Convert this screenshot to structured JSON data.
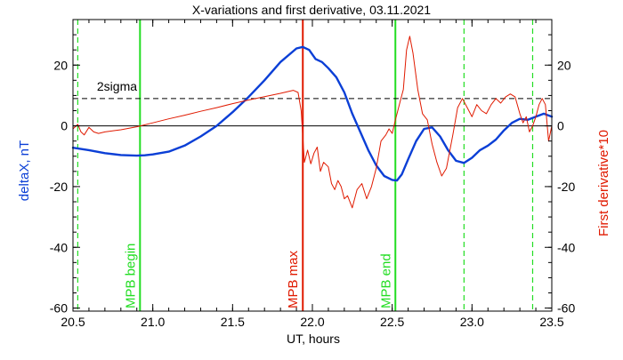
{
  "chart_data": {
    "type": "line",
    "title": "X-variations and first derivative, 03.11.2021",
    "xlabel": "UT, hours",
    "ylabel_left": "deltaX, nT",
    "ylabel_right": "First derivative*10",
    "xlim": [
      20.5,
      23.5
    ],
    "ylim": [
      -61,
      35
    ],
    "x_ticks": [
      "20.5",
      "21.0",
      "21.5",
      "22.0",
      "22.5",
      "23.0",
      "23.5"
    ],
    "y_ticks_left": [
      "-60",
      "-40",
      "-20",
      "0",
      "20"
    ],
    "y_ticks_right": [
      "-60",
      "-40",
      "-20",
      "0",
      "20"
    ],
    "grid": false,
    "colors": {
      "deltaX": "#0b3fd6",
      "derivative": "#e01a00",
      "marker_green": "#22dd22",
      "marker_red": "#e01a00",
      "reference": "#000000"
    },
    "series": [
      {
        "key": "deltaX",
        "axis": "left",
        "points": [
          [
            20.5,
            -7.2
          ],
          [
            20.6,
            -8.0
          ],
          [
            20.7,
            -9.0
          ],
          [
            20.8,
            -9.6
          ],
          [
            20.9,
            -9.8
          ],
          [
            20.95,
            -9.7
          ],
          [
            21.0,
            -9.4
          ],
          [
            21.1,
            -8.5
          ],
          [
            21.2,
            -6.5
          ],
          [
            21.3,
            -3.5
          ],
          [
            21.4,
            0.0
          ],
          [
            21.5,
            4.5
          ],
          [
            21.6,
            9.5
          ],
          [
            21.7,
            15.0
          ],
          [
            21.8,
            21.0
          ],
          [
            21.9,
            25.5
          ],
          [
            21.94,
            26.0
          ],
          [
            21.98,
            25.0
          ],
          [
            22.02,
            22.0
          ],
          [
            22.06,
            21.0
          ],
          [
            22.1,
            19.0
          ],
          [
            22.15,
            16.0
          ],
          [
            22.2,
            11.0
          ],
          [
            22.25,
            4.0
          ],
          [
            22.3,
            -2.0
          ],
          [
            22.35,
            -8.0
          ],
          [
            22.4,
            -13.0
          ],
          [
            22.45,
            -16.5
          ],
          [
            22.5,
            -17.8
          ],
          [
            22.53,
            -18.0
          ],
          [
            22.56,
            -16.0
          ],
          [
            22.6,
            -11.0
          ],
          [
            22.65,
            -5.0
          ],
          [
            22.7,
            -1.0
          ],
          [
            22.75,
            -0.5
          ],
          [
            22.8,
            -3.5
          ],
          [
            22.85,
            -8.0
          ],
          [
            22.9,
            -11.5
          ],
          [
            22.95,
            -12.2
          ],
          [
            23.0,
            -10.5
          ],
          [
            23.05,
            -8.0
          ],
          [
            23.1,
            -6.5
          ],
          [
            23.15,
            -4.5
          ],
          [
            23.2,
            -1.5
          ],
          [
            23.25,
            1.0
          ],
          [
            23.3,
            2.3
          ],
          [
            23.35,
            2.0
          ],
          [
            23.4,
            3.0
          ],
          [
            23.45,
            4.0
          ],
          [
            23.5,
            3.0
          ]
        ]
      },
      {
        "key": "derivative",
        "axis": "right",
        "points": [
          [
            20.5,
            -1.0
          ],
          [
            20.53,
            0.5
          ],
          [
            20.55,
            -2.0
          ],
          [
            20.57,
            -3.0
          ],
          [
            20.6,
            -0.5
          ],
          [
            20.63,
            -2.0
          ],
          [
            20.66,
            -2.5
          ],
          [
            20.7,
            -2.0
          ],
          [
            20.8,
            -1.3
          ],
          [
            20.9,
            -0.3
          ],
          [
            21.0,
            1.0
          ],
          [
            21.1,
            2.3
          ],
          [
            21.2,
            3.5
          ],
          [
            21.3,
            4.8
          ],
          [
            21.4,
            6.0
          ],
          [
            21.5,
            7.3
          ],
          [
            21.6,
            8.5
          ],
          [
            21.7,
            9.6
          ],
          [
            21.8,
            10.7
          ],
          [
            21.88,
            11.7
          ],
          [
            21.91,
            11.0
          ],
          [
            21.93,
            5.0
          ],
          [
            21.95,
            -12.0
          ],
          [
            21.97,
            -8.0
          ],
          [
            21.99,
            -12.5
          ],
          [
            22.01,
            -9.0
          ],
          [
            22.03,
            -7.0
          ],
          [
            22.05,
            -15.0
          ],
          [
            22.07,
            -12.0
          ],
          [
            22.1,
            -13.5
          ],
          [
            22.12,
            -19.0
          ],
          [
            22.14,
            -21.0
          ],
          [
            22.16,
            -18.0
          ],
          [
            22.18,
            -20.0
          ],
          [
            22.2,
            -24.0
          ],
          [
            22.22,
            -23.0
          ],
          [
            22.25,
            -27.0
          ],
          [
            22.28,
            -21.0
          ],
          [
            22.31,
            -19.0
          ],
          [
            22.34,
            -24.0
          ],
          [
            22.37,
            -20.0
          ],
          [
            22.4,
            -14.0
          ],
          [
            22.43,
            -5.0
          ],
          [
            22.46,
            -3.0
          ],
          [
            22.48,
            -1.0
          ],
          [
            22.5,
            -2.5
          ],
          [
            22.52,
            2.0
          ],
          [
            22.55,
            8.0
          ],
          [
            22.57,
            12.0
          ],
          [
            22.59,
            25.0
          ],
          [
            22.61,
            29.5
          ],
          [
            22.63,
            24.0
          ],
          [
            22.66,
            12.0
          ],
          [
            22.69,
            4.0
          ],
          [
            22.72,
            2.0
          ],
          [
            22.75,
            -6.0
          ],
          [
            22.78,
            -12.0
          ],
          [
            22.81,
            -16.5
          ],
          [
            22.84,
            -14.0
          ],
          [
            22.88,
            -3.0
          ],
          [
            22.91,
            6.0
          ],
          [
            22.94,
            9.0
          ],
          [
            22.97,
            6.0
          ],
          [
            23.0,
            3.0
          ],
          [
            23.03,
            7.0
          ],
          [
            23.06,
            5.0
          ],
          [
            23.09,
            4.0
          ],
          [
            23.12,
            7.0
          ],
          [
            23.15,
            9.0
          ],
          [
            23.18,
            7.5
          ],
          [
            23.21,
            9.5
          ],
          [
            23.24,
            10.5
          ],
          [
            23.27,
            9.5
          ],
          [
            23.3,
            4.0
          ],
          [
            23.32,
            1.0
          ],
          [
            23.34,
            3.0
          ],
          [
            23.36,
            -2.0
          ],
          [
            23.38,
            0.0
          ],
          [
            23.4,
            3.0
          ],
          [
            23.42,
            7.0
          ],
          [
            23.44,
            9.0
          ],
          [
            23.46,
            7.0
          ],
          [
            23.48,
            -5.0
          ],
          [
            23.5,
            0.0
          ]
        ]
      }
    ],
    "reference_lines": [
      {
        "key": "zero",
        "y": 0,
        "style": "solid"
      },
      {
        "key": "two-sigma",
        "y": 9,
        "style": "dashed",
        "label": "2sigma"
      }
    ],
    "markers": [
      {
        "key": "mpb-begin",
        "x": 20.92,
        "label": "MPB begin",
        "color": "green",
        "style": "solid"
      },
      {
        "key": "mpb-max",
        "x": 21.94,
        "label": "MPB max",
        "color": "red",
        "style": "solid"
      },
      {
        "key": "mpb-end",
        "x": 22.52,
        "label": "MPB end",
        "color": "green",
        "style": "solid"
      },
      {
        "key": "left-dashed",
        "x": 20.53,
        "label": "",
        "color": "green",
        "style": "dashed"
      },
      {
        "key": "right-dashed-1",
        "x": 22.95,
        "label": "",
        "color": "green",
        "style": "dashed"
      },
      {
        "key": "right-dashed-2",
        "x": 23.38,
        "label": "",
        "color": "green",
        "style": "dashed"
      }
    ]
  }
}
